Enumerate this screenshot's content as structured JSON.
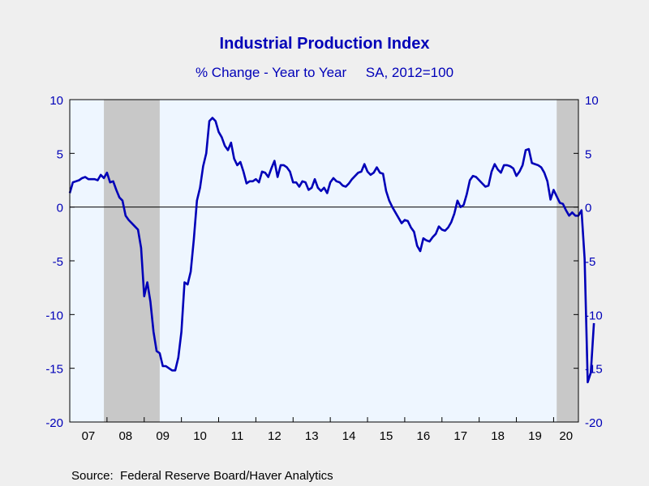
{
  "chart_data": {
    "type": "line",
    "title": "Industrial Production Index",
    "subtitle": "% Change - Year to Year     SA, 2012=100",
    "source": "Source:  Federal Reserve Board/Haver Analytics",
    "x_tick_labels": [
      "07",
      "08",
      "09",
      "10",
      "11",
      "12",
      "13",
      "14",
      "15",
      "16",
      "17",
      "18",
      "19",
      "20"
    ],
    "y_tick_labels": [
      "10",
      "5",
      "0",
      "-5",
      "-10",
      "-15",
      "-20"
    ],
    "y_ticks": [
      10,
      5,
      0,
      -5,
      -10,
      -15,
      -20
    ],
    "ylim": [
      -20,
      10
    ],
    "xlim": [
      2007.0,
      2020.6667
    ],
    "grid": false,
    "zero_line": true,
    "recessions": [
      [
        2007.917,
        2009.417
      ],
      [
        2020.083,
        2020.6667
      ]
    ],
    "colors": {
      "line": "#0000b8",
      "plot_bg": "#eef6ff",
      "recession": "#c8c8c8",
      "title": "#0000b8",
      "axis_text": "#0000b8",
      "frame": "#000000"
    },
    "series": [
      {
        "x_start": 2007.0,
        "step_months": 1,
        "values": [
          1.3,
          2.3,
          2.4,
          2.5,
          2.7,
          2.8,
          2.6,
          2.6,
          2.6,
          2.5,
          3.0,
          2.7,
          3.2,
          2.3,
          2.4,
          1.6,
          0.9,
          0.6,
          -0.8,
          -1.2,
          -1.5,
          -1.8,
          -2.1,
          -3.8,
          -8.3,
          -7.0,
          -8.8,
          -11.6,
          -13.4,
          -13.6,
          -14.8,
          -14.8,
          -15.0,
          -15.2,
          -15.2,
          -14.0,
          -11.6,
          -7.0,
          -7.2,
          -6.0,
          -3.0,
          0.6,
          1.8,
          3.8,
          5.0,
          8.0,
          8.3,
          8.0,
          7.0,
          6.5,
          5.7,
          5.3,
          6.0,
          4.5,
          3.9,
          4.2,
          3.3,
          2.2,
          2.4,
          2.4,
          2.6,
          2.3,
          3.3,
          3.2,
          2.8,
          3.6,
          4.3,
          2.8,
          3.9,
          3.9,
          3.7,
          3.3,
          2.3,
          2.3,
          1.9,
          2.4,
          2.3,
          1.6,
          1.8,
          2.6,
          1.8,
          1.5,
          1.8,
          1.3,
          2.3,
          2.7,
          2.4,
          2.3,
          2.0,
          1.9,
          2.2,
          2.6,
          2.9,
          3.2,
          3.3,
          4.0,
          3.3,
          3.0,
          3.2,
          3.7,
          3.2,
          3.1,
          1.5,
          0.6,
          0.0,
          -0.5,
          -1.0,
          -1.5,
          -1.2,
          -1.3,
          -1.9,
          -2.3,
          -3.6,
          -4.1,
          -2.9,
          -3.1,
          -3.2,
          -2.8,
          -2.5,
          -1.8,
          -2.1,
          -2.2,
          -1.9,
          -1.4,
          -0.6,
          0.6,
          0.0,
          0.2,
          1.2,
          2.5,
          2.9,
          2.8,
          2.5,
          2.2,
          1.9,
          2.0,
          3.3,
          4.0,
          3.5,
          3.2,
          3.9,
          3.9,
          3.8,
          3.6,
          2.9,
          3.3,
          3.9,
          5.3,
          5.4,
          4.1,
          4.0,
          3.9,
          3.7,
          3.2,
          2.4,
          0.7,
          1.6,
          1.0,
          0.4,
          0.3,
          -0.3,
          -0.8,
          -0.5,
          -0.8,
          -0.8,
          -0.3,
          -4.8,
          -16.3,
          -15.4,
          -10.8
        ]
      }
    ]
  }
}
